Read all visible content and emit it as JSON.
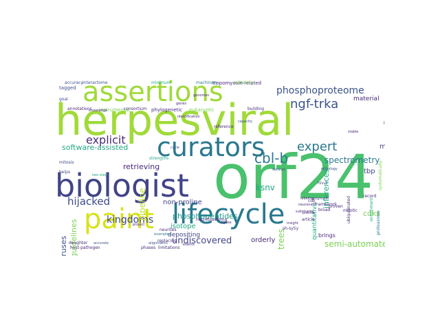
{
  "word_cloud": {
    "words": [
      {
        "text": "herpesviral",
        "color": "#a0da39"
      },
      {
        "text": "orf24",
        "color": "#4ac16d"
      },
      {
        "text": "assertions",
        "color": "#a0da39"
      },
      {
        "text": "biologist",
        "color": "#414487"
      },
      {
        "text": "curators",
        "color": "#2a788e"
      },
      {
        "text": "lifecycle",
        "color": "#2a788e"
      },
      {
        "text": "paint",
        "color": "#d8e219"
      },
      {
        "text": "phosphoproteome",
        "color": "#3b528b"
      },
      {
        "text": "ngf-trka",
        "color": "#3b528b"
      },
      {
        "text": "cbl-b",
        "color": "#2a788e"
      },
      {
        "text": "expert",
        "color": "#2a788e"
      },
      {
        "text": "explicit",
        "color": "#482878"
      },
      {
        "text": "hijacked",
        "color": "#3e4a89"
      },
      {
        "text": "kingdoms",
        "color": "#414487"
      },
      {
        "text": "undiscovered",
        "color": "#414487"
      },
      {
        "text": "semi-automated",
        "color": "#7ad151"
      },
      {
        "text": "spectrometry",
        "color": "#2a788e"
      },
      {
        "text": "inferences",
        "color": "#22a884"
      },
      {
        "text": "mass",
        "color": "#414487"
      },
      {
        "text": "software-assisted",
        "color": "#22a884"
      },
      {
        "text": "retrieving",
        "color": "#482878"
      },
      {
        "text": "non-proline",
        "color": "#414487"
      },
      {
        "text": "phosphopeptides",
        "color": "#1f988b"
      },
      {
        "text": "isotope",
        "color": "#22a884"
      },
      {
        "text": "depositing",
        "color": "#414487"
      },
      {
        "text": "orderly",
        "color": "#482878"
      },
      {
        "text": "herpesviruses",
        "color": "#3b528b"
      },
      {
        "text": "guidelines",
        "color": "#7ad151"
      },
      {
        "text": "pipeline",
        "color": "#bddf26"
      },
      {
        "text": "material",
        "color": "#482878"
      },
      {
        "text": "tbp",
        "color": "#414487"
      },
      {
        "text": "ksnv",
        "color": "#22a884"
      },
      {
        "text": "trees",
        "color": "#7ad151"
      },
      {
        "text": "quantitative",
        "color": "#22a884"
      },
      {
        "text": "cdks",
        "color": "#7ad151"
      },
      {
        "text": "brings",
        "color": "#482878"
      },
      {
        "text": "tropomyosin-related",
        "color": "#482878"
      },
      {
        "text": "eukaryotic",
        "color": "#7ad151"
      },
      {
        "text": "phylogenetic",
        "color": "#472d7b"
      },
      {
        "text": "instrumental",
        "color": "#7ad151"
      },
      {
        "text": "annotations",
        "color": "#482878"
      },
      {
        "text": "accuracy",
        "color": "#3e4a89"
      },
      {
        "text": "interactome",
        "color": "#3b528b"
      },
      {
        "text": "tagged",
        "color": "#3b528b"
      },
      {
        "text": "goal",
        "color": "#3e4a89"
      },
      {
        "text": "mitosis",
        "color": "#3e4a89"
      },
      {
        "text": "helps",
        "color": "#3e4a89"
      },
      {
        "text": "two-step",
        "color": "#22a884"
      },
      {
        "text": "daughter",
        "color": "#482878"
      },
      {
        "text": "host-pathogen",
        "color": "#482878"
      },
      {
        "text": "accurate",
        "color": "#3b528b"
      },
      {
        "text": "replacing",
        "color": "#472d7b"
      },
      {
        "text": "phases",
        "color": "#482878"
      },
      {
        "text": "limitations",
        "color": "#472d7b"
      },
      {
        "text": "neurites",
        "color": "#482878"
      },
      {
        "text": "examples",
        "color": "#2a788e"
      },
      {
        "text": "alignments",
        "color": "#3b528b"
      },
      {
        "text": "events",
        "color": "#482878"
      },
      {
        "text": "neuroblastoma",
        "color": "#482878"
      },
      {
        "text": "project",
        "color": "#482878"
      },
      {
        "text": "reference",
        "color": "#482878"
      },
      {
        "text": "strengths",
        "color": "#22a884"
      },
      {
        "text": "consortium",
        "color": "#472d7b"
      },
      {
        "text": "building",
        "color": "#472d7b"
      },
      {
        "text": "capacity",
        "color": "#3e4a89"
      },
      {
        "text": "orthology",
        "color": "#3e4a89"
      },
      {
        "text": "outgrowth",
        "color": "#3e4a89"
      },
      {
        "text": "hiv-1",
        "color": "#3e4a89"
      },
      {
        "text": "lie",
        "color": "#482878"
      },
      {
        "text": "record",
        "color": "#482878"
      },
      {
        "text": "framework",
        "color": "#472d7b"
      },
      {
        "text": "cdk",
        "color": "#482878"
      },
      {
        "text": "proven",
        "color": "#482878"
      },
      {
        "text": "mitotic",
        "color": "#482878"
      },
      {
        "text": "sh-sy5y",
        "color": "#472d7b"
      },
      {
        "text": "article",
        "color": "#482878"
      },
      {
        "text": "uniform",
        "color": "#22a884"
      },
      {
        "text": "proteasome",
        "color": "#2a788e"
      },
      {
        "text": "enrichment",
        "color": "#22a884"
      },
      {
        "text": "systematically",
        "color": "#7ad151"
      },
      {
        "text": "ubiquitinated",
        "color": "#472d7b"
      },
      {
        "text": "matching",
        "color": "#7ad151"
      },
      {
        "text": "minimum",
        "color": "#22a884"
      },
      {
        "text": "machinery",
        "color": "#2a788e"
      },
      {
        "text": "genomes",
        "color": "#482878"
      },
      {
        "text": "knowledge",
        "color": "#482878"
      },
      {
        "text": "ligase",
        "color": "#482878"
      },
      {
        "text": "insight",
        "color": "#482878"
      },
      {
        "text": "precise",
        "color": "#482878"
      },
      {
        "text": "broad",
        "color": "#482878"
      },
      {
        "text": "genes",
        "color": "#482878"
      },
      {
        "text": "stable",
        "color": "#482878"
      },
      {
        "text": "cycle",
        "color": "#3b528b"
      },
      {
        "text": "labeling",
        "color": "#482878"
      },
      {
        "text": "neuronal",
        "color": "#482878"
      },
      {
        "text": "substrates",
        "color": "#482878"
      },
      {
        "text": "dataset",
        "color": "#3b528b"
      },
      {
        "text": "identification",
        "color": "#482878"
      }
    ]
  }
}
